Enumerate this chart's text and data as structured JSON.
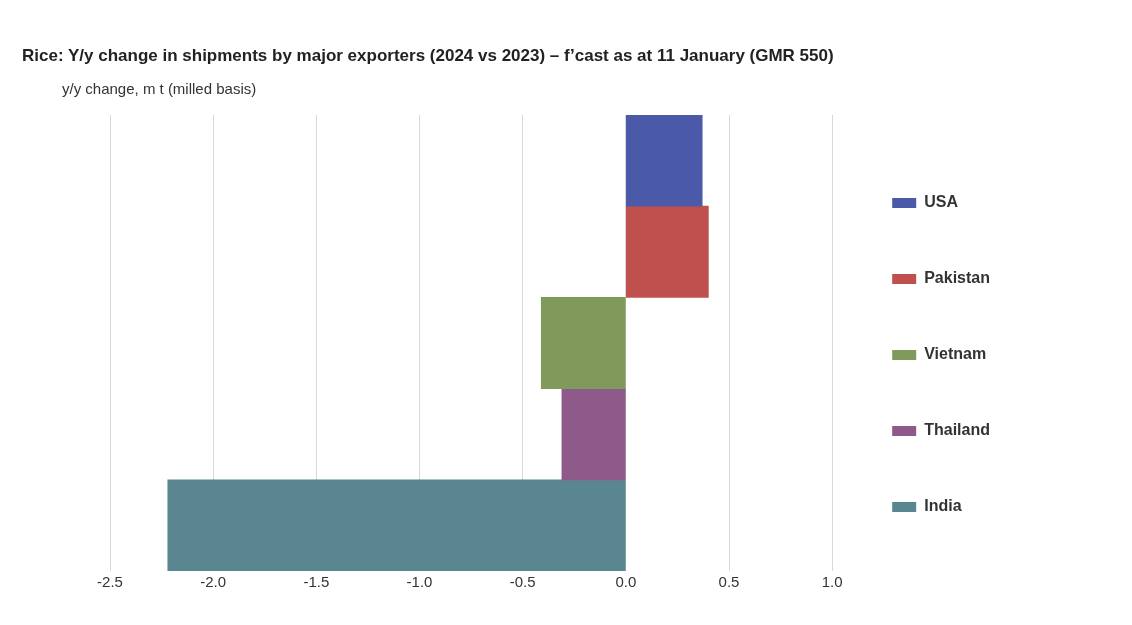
{
  "chart_data": {
    "type": "bar",
    "orientation": "horizontal",
    "stacked": true,
    "title": "Rice: Y/y change in shipments by major exporters (2024 vs 2023) – f’cast as at 11 January (GMR 550)",
    "xlabel": "y/y change, m t (milled basis)",
    "categories": [
      null,
      null,
      null,
      null,
      null
    ],
    "series": [
      {
        "name": "USA",
        "color": "#4a5aa8",
        "values": [
          0.37,
          null,
          null,
          null,
          null
        ]
      },
      {
        "name": "Pakistan",
        "color": "#c0504d",
        "values": [
          null,
          0.4,
          null,
          null,
          null
        ]
      },
      {
        "name": "Vietnam",
        "color": "#7f9a5a",
        "values": [
          null,
          null,
          -0.41,
          null,
          null
        ]
      },
      {
        "name": "Thailand",
        "color": "#8e5a8a",
        "values": [
          null,
          null,
          null,
          -0.31,
          null
        ]
      },
      {
        "name": "India",
        "color": "#5a8690",
        "values": [
          null,
          null,
          null,
          null,
          -2.22
        ]
      }
    ],
    "xlim": [
      -2.5,
      1.0
    ],
    "xticks": [
      {
        "value": -2.5,
        "label": "-2.5"
      },
      {
        "value": -2.0,
        "label": "-2.0"
      },
      {
        "value": -1.5,
        "label": "-1.5"
      },
      {
        "value": -1.0,
        "label": "-1.0"
      },
      {
        "value": -0.5,
        "label": "-0.5"
      },
      {
        "value": 0,
        "label": "0.0"
      },
      {
        "value": 0.5,
        "label": "0.5"
      },
      {
        "value": 1.0,
        "label": "1.0"
      }
    ],
    "grid": "x",
    "legend": "right"
  }
}
